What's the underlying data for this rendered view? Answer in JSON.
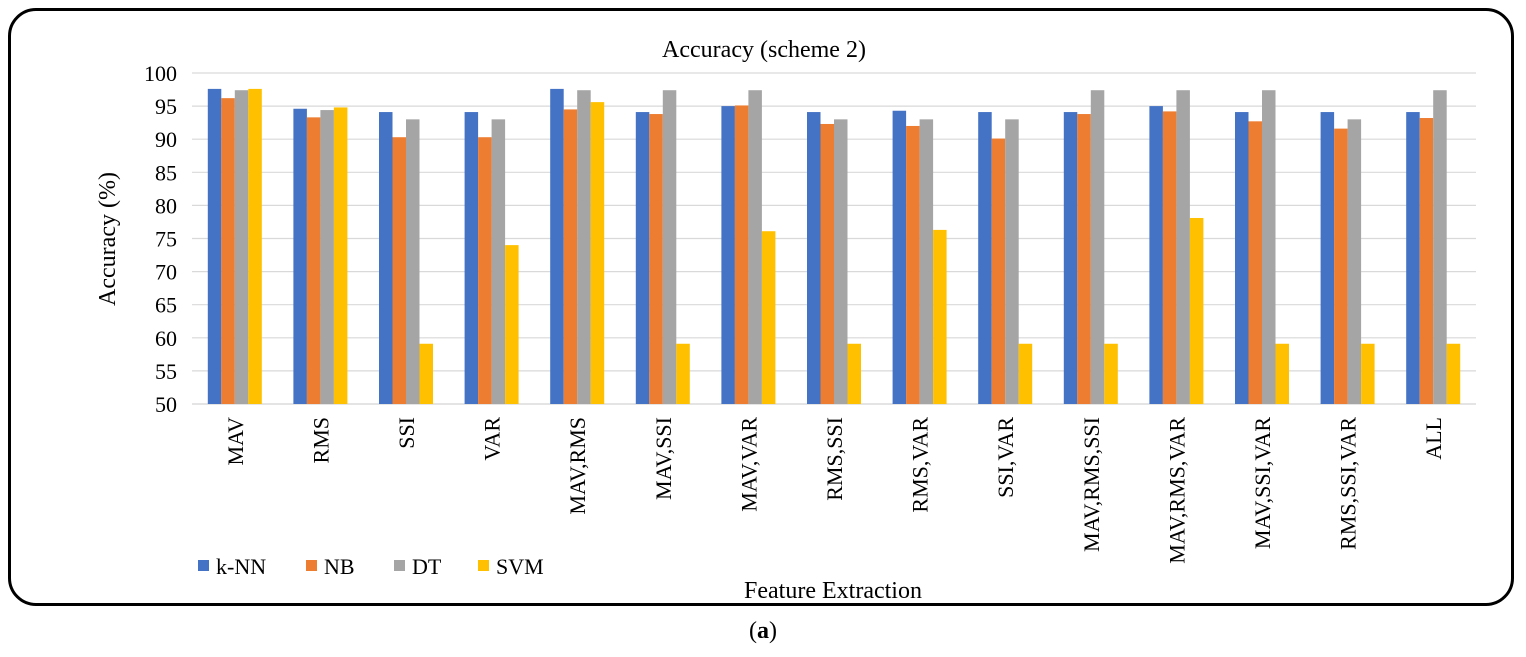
{
  "chart_data": {
    "type": "bar",
    "title": "Accuracy (scheme 2)",
    "xlabel": "Feature Extraction",
    "ylabel": "Accuracy (%)",
    "ylim": [
      50,
      100
    ],
    "ytick_step": 5,
    "grid": true,
    "legend_position": "bottom-left",
    "categories": [
      "MAV",
      "RMS",
      "SSI",
      "VAR",
      "MAV,RMS",
      "MAV,SSI",
      "MAV,VAR",
      "RMS,SSI",
      "RMS,VAR",
      "SSI,VAR",
      "MAV,RMS,SSI",
      "MAV,RMS,VAR",
      "MAV,SSI,VAR",
      "RMS,SSI,VAR",
      "ALL"
    ],
    "series": [
      {
        "name": "k-NN",
        "color": "#4472C4",
        "values": [
          97.6,
          94.6,
          94.1,
          94.1,
          97.6,
          94.1,
          95.0,
          94.1,
          94.3,
          94.1,
          94.1,
          95.0,
          94.1,
          94.1,
          94.1
        ]
      },
      {
        "name": "NB",
        "color": "#ED7D31",
        "values": [
          96.2,
          93.3,
          90.3,
          90.3,
          94.5,
          93.8,
          95.1,
          92.3,
          92.0,
          90.1,
          93.8,
          94.2,
          92.7,
          91.6,
          93.2
        ]
      },
      {
        "name": "DT",
        "color": "#A5A5A5",
        "values": [
          97.4,
          94.4,
          93.0,
          93.0,
          97.4,
          97.4,
          97.4,
          93.0,
          93.0,
          93.0,
          97.4,
          97.4,
          97.4,
          93.0,
          97.4
        ]
      },
      {
        "name": "SVM",
        "color": "#FFC000",
        "values": [
          97.6,
          94.8,
          59.1,
          74.0,
          95.6,
          59.1,
          76.1,
          59.1,
          76.3,
          59.1,
          59.1,
          78.1,
          59.1,
          59.1,
          59.1
        ]
      }
    ]
  },
  "caption": {
    "open": "(",
    "label": "a",
    "close": ")"
  }
}
